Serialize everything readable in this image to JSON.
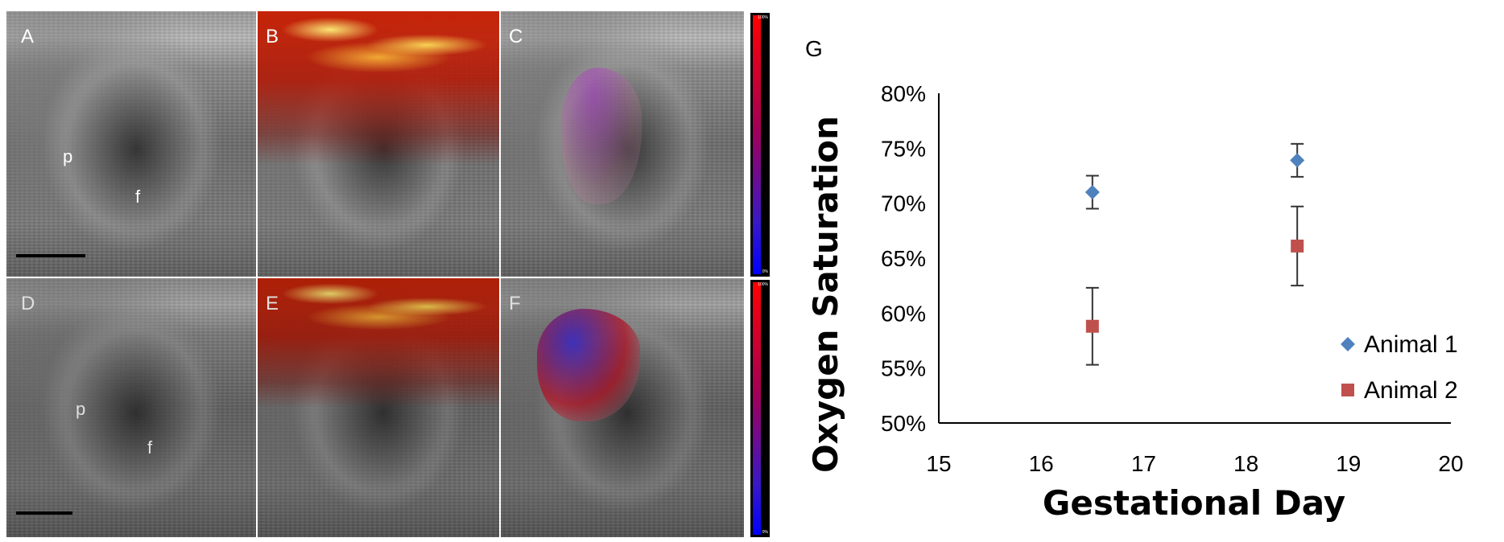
{
  "panels": {
    "A": {
      "letter": "A",
      "labels": [
        "p",
        "f"
      ]
    },
    "B": {
      "letter": "B"
    },
    "C": {
      "letter": "C"
    },
    "D": {
      "letter": "D",
      "labels": [
        "p",
        "f"
      ]
    },
    "E": {
      "letter": "E"
    },
    "F": {
      "letter": "F"
    },
    "colorbar_top": "100%",
    "colorbar_bottom": "0%"
  },
  "chart_panel_letter": "G",
  "chart_data": {
    "type": "scatter",
    "xlabel": "Gestational Day",
    "ylabel": "Oxygen Saturation",
    "xlim": [
      15,
      20
    ],
    "ylim": [
      50,
      80
    ],
    "xticks": [
      "15",
      "16",
      "17",
      "18",
      "19",
      "20"
    ],
    "yticks": [
      "50%",
      "55%",
      "60%",
      "65%",
      "70%",
      "75%",
      "80%"
    ],
    "legend_position": "bottom-right",
    "series": [
      {
        "name": "Animal 1",
        "marker": "diamond",
        "color": "#4F81BD",
        "points": [
          {
            "x": 16.5,
            "y": 71.0,
            "err": 1.5
          },
          {
            "x": 18.5,
            "y": 73.9,
            "err": 1.5
          }
        ]
      },
      {
        "name": "Animal 2",
        "marker": "square",
        "color": "#C0504D",
        "points": [
          {
            "x": 16.5,
            "y": 58.8,
            "err": 3.5
          },
          {
            "x": 18.5,
            "y": 66.1,
            "err": 3.6
          }
        ]
      }
    ]
  }
}
